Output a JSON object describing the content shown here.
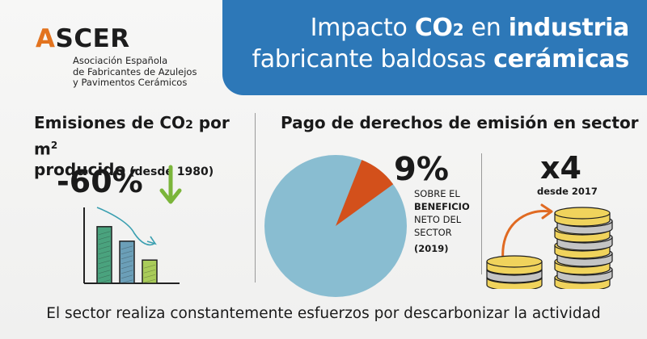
{
  "logo": {
    "word_a": "A",
    "word_rest": "SCER",
    "sub_line1": "Asociación Española",
    "sub_line2": "de Fabricantes de Azulejos",
    "sub_line3": "y Pavimentos Cerámicos",
    "accent_color": "#e2731f"
  },
  "header": {
    "line1_a": "Impacto ",
    "line1_b": "CO",
    "line1_b_sub": "2",
    "line1_c": " en ",
    "line1_d": "industria",
    "line2_a": "fabricante baldosas ",
    "line2_b": "cerámicas",
    "band_color": "#2d78b8"
  },
  "left_panel": {
    "title_a": "Emisiones de CO",
    "title_sub": "2",
    "title_b": " por m",
    "title_sup": "2",
    "title_c": "producido",
    "title_small": " (desde 1980)",
    "reduction": "-60%",
    "arrow_icon": "down-arrow-icon",
    "arrow_color": "#7bb53a",
    "bar_chart": {
      "bar_levels": [
        0.78,
        0.58,
        0.32
      ],
      "bar_colors": [
        "#4aa37e",
        "#6b9fb8",
        "#a9cc59"
      ]
    }
  },
  "middle_panel": {
    "title": "Pago de derechos de emisión en sector",
    "percent": "9%",
    "note_line1": "SOBRE EL",
    "note_line2": "BENEFICIO",
    "note_line3": "NETO DEL",
    "note_line4": "SECTOR",
    "note_line5": "(2019)",
    "pie": {
      "slice_percent": 9,
      "slice_color": "#d3501b",
      "rest_color": "#89bdd1"
    }
  },
  "right_panel": {
    "multiplier": "x4",
    "note": "desde 2017",
    "coin_colors": {
      "gold": "#f0d35c",
      "silver": "#c4c4c4"
    },
    "arrow_color": "#e06a22"
  },
  "footer": {
    "text": "El sector realiza constantemente esfuerzos por descarbonizar la actividad"
  }
}
